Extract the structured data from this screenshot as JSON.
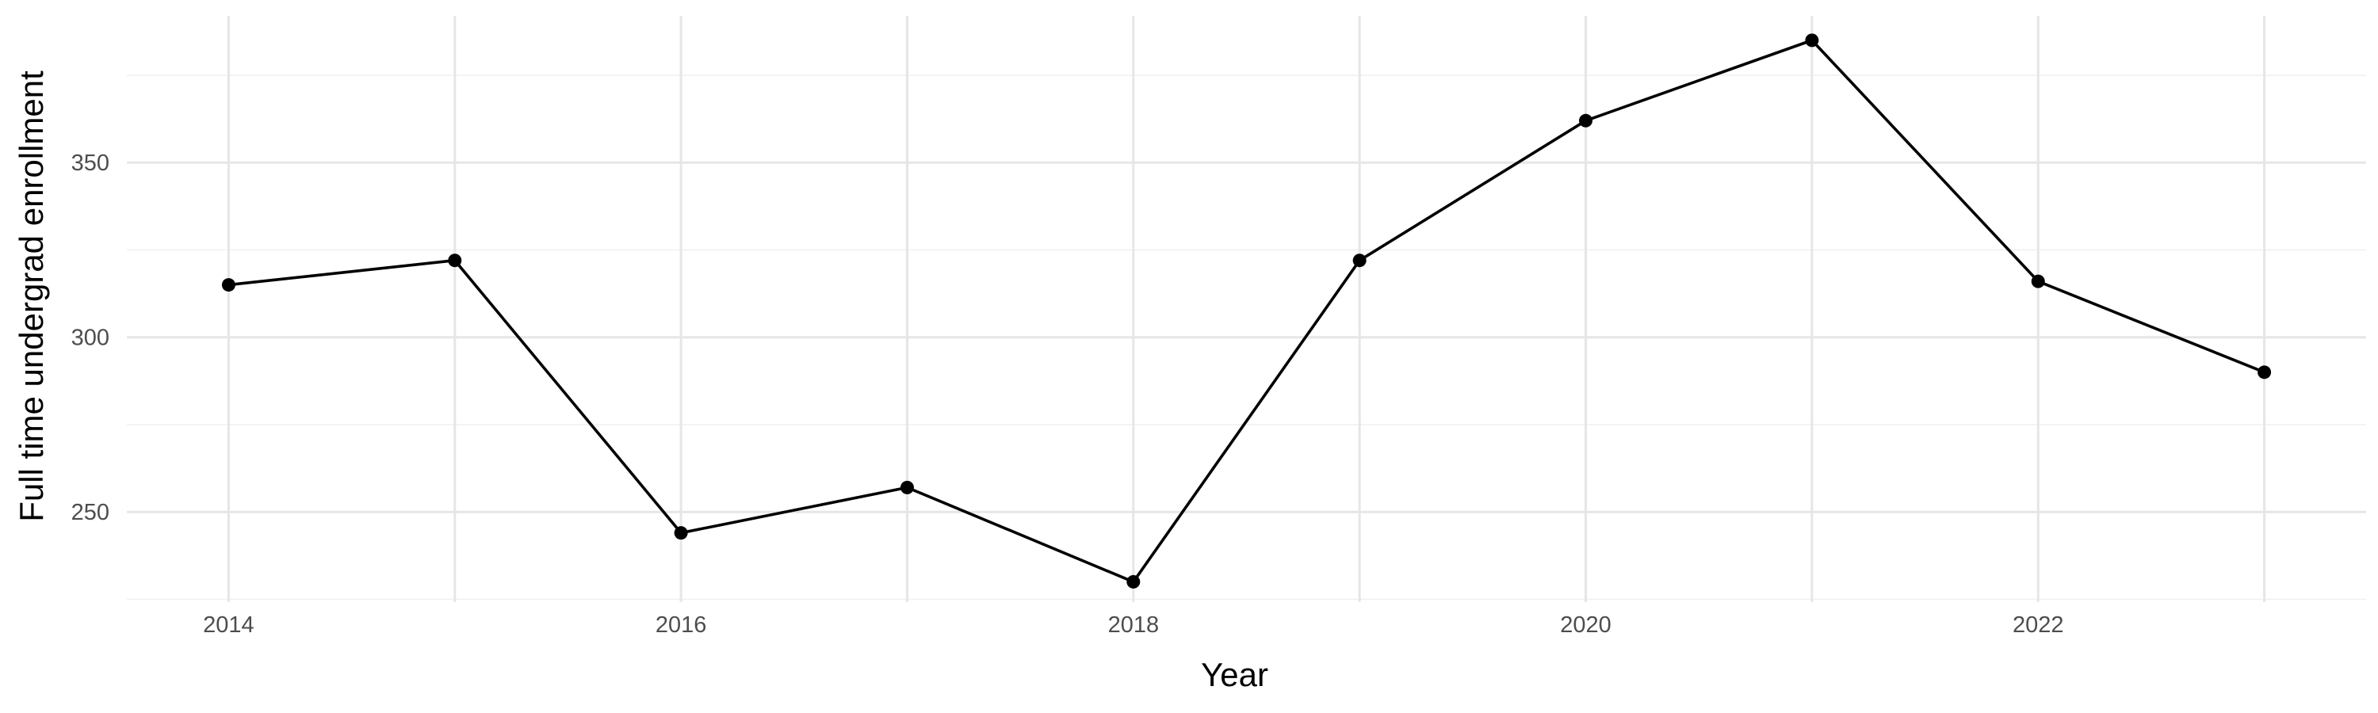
{
  "chart_data": {
    "type": "line",
    "title": "",
    "xlabel": "Year",
    "ylabel": "Full time undergrad enrollment",
    "x": [
      2014,
      2015,
      2016,
      2017,
      2018,
      2019,
      2020,
      2021,
      2022,
      2023
    ],
    "series": [
      {
        "values": [
          315,
          322,
          244,
          257,
          230,
          322,
          362,
          385,
          316,
          290
        ]
      }
    ],
    "x_ticks": [
      "2014",
      "2016",
      "2018",
      "2020",
      "2022"
    ],
    "y_ticks": [
      "250",
      "300",
      "350"
    ],
    "xlim": [
      2013.55,
      2023.45
    ],
    "ylim": [
      224.2,
      392.0
    ],
    "grid": true,
    "markers": true,
    "legend": "none",
    "colors": {
      "line": "#000000",
      "point": "#000000",
      "grid_major": "#e6e6e6",
      "grid_minor": "#f0f0f0",
      "tick_text": "#4d4d4d"
    }
  }
}
